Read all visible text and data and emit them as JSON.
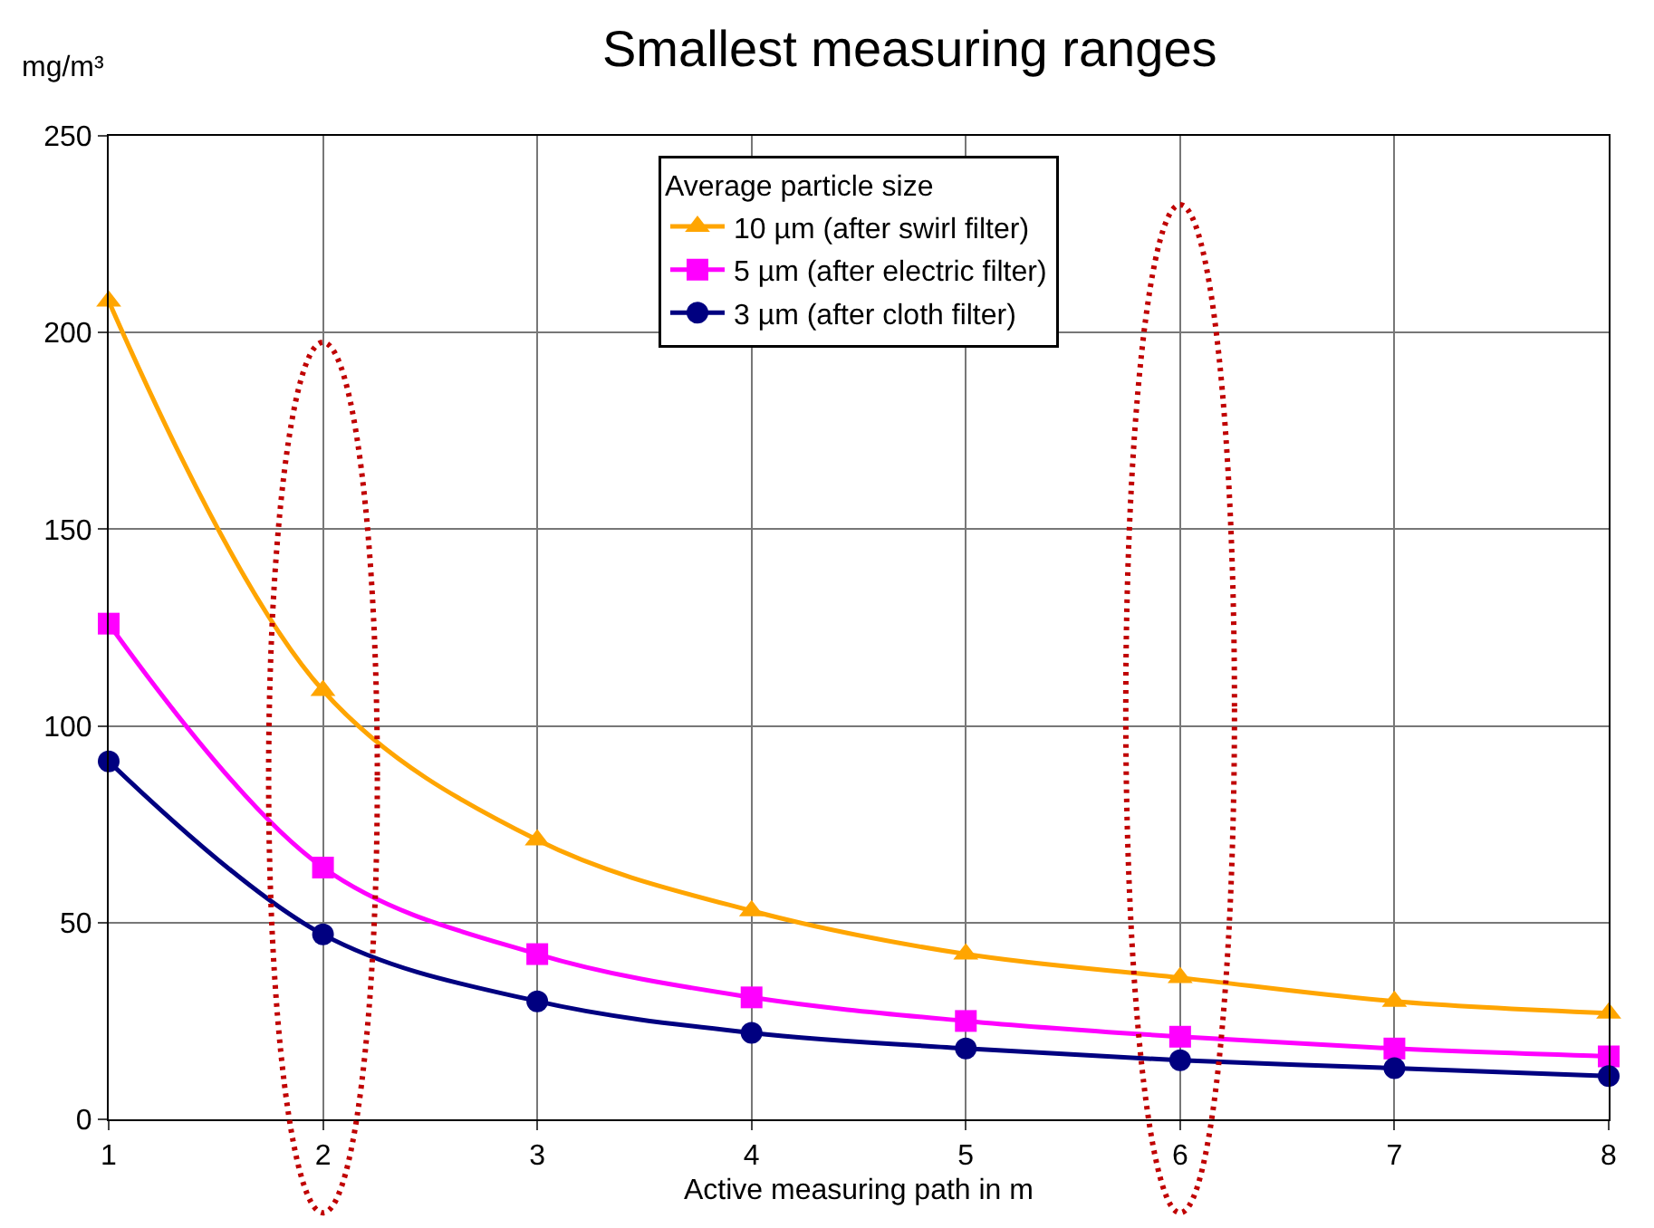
{
  "chart_data": {
    "type": "line",
    "title": "Smallest measuring ranges",
    "xlabel": "Active measuring path in m",
    "ylabel": "mg/m³",
    "legend_title": "Average particle size",
    "x": [
      1,
      2,
      3,
      4,
      5,
      6,
      7,
      8
    ],
    "series": [
      {
        "name": "10 µm (after swirl filter)",
        "color": "#ffa500",
        "marker": "triangle",
        "values": [
          208,
          109,
          71,
          53,
          42,
          36,
          30,
          27
        ]
      },
      {
        "name": "5 µm (after electric filter)",
        "color": "#ff00ff",
        "marker": "square",
        "values": [
          126,
          64,
          42,
          31,
          25,
          21,
          18,
          16
        ]
      },
      {
        "name": "3 µm (after cloth filter)",
        "color": "#000080",
        "marker": "circle",
        "values": [
          91,
          47,
          30,
          22,
          18,
          15,
          13,
          11
        ]
      }
    ],
    "xlim": [
      1,
      8
    ],
    "xticks": [
      1,
      2,
      3,
      4,
      5,
      6,
      7,
      8
    ],
    "ylim": [
      0,
      250
    ],
    "yticks": [
      0,
      50,
      100,
      150,
      200,
      250
    ],
    "grid": true,
    "legend": "top"
  }
}
